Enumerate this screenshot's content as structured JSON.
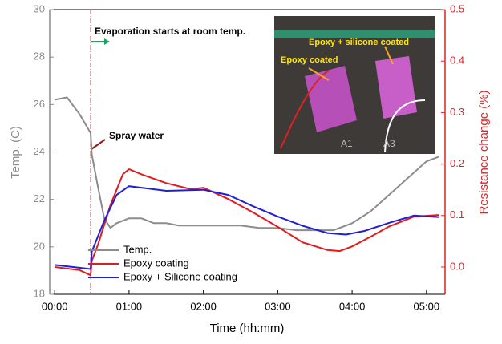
{
  "chart_data": {
    "type": "line",
    "xlabel": "Time (hh:mm)",
    "ylabel": "Temp. (C)",
    "y2label": "Resistance change (%)",
    "xlim": [
      -4,
      315
    ],
    "xticks": [
      {
        "value": 0,
        "label": "00:00"
      },
      {
        "value": 60,
        "label": "01:00"
      },
      {
        "value": 120,
        "label": "02:00"
      },
      {
        "value": 180,
        "label": "03:00"
      },
      {
        "value": 240,
        "label": "04:00"
      },
      {
        "value": 300,
        "label": "05:00"
      }
    ],
    "ylim": [
      18,
      30
    ],
    "yticks": [
      18,
      20,
      22,
      24,
      26,
      28,
      30
    ],
    "y2lim": [
      -0.053,
      0.5
    ],
    "y2ticks": [
      {
        "value": 0,
        "label": "0.0"
      },
      0.1,
      0.2,
      0.3,
      0.4,
      0.5
    ],
    "left_axis_color": "#8c8c8c",
    "right_axis_color": "#d62728",
    "legend": "lower left",
    "series": [
      {
        "name": "Temp.",
        "color": "#8c8c8c",
        "axis": "y",
        "x": [
          0,
          10,
          20,
          29,
          30,
          35,
          40,
          45,
          50,
          60,
          70,
          80,
          90,
          100,
          120,
          150,
          165,
          180,
          195,
          210,
          225,
          240,
          255,
          270,
          285,
          300,
          310
        ],
        "values": [
          26.2,
          26.3,
          25.6,
          24.8,
          23.9,
          22.5,
          21.2,
          20.8,
          21.0,
          21.2,
          21.2,
          21.0,
          21.0,
          20.9,
          20.9,
          20.9,
          20.8,
          20.8,
          20.7,
          20.7,
          20.7,
          21.0,
          21.5,
          22.2,
          22.9,
          23.6,
          23.8
        ]
      },
      {
        "name": "Epoxy coating",
        "color": "#e41a1c",
        "axis": "y2",
        "x": [
          0,
          20,
          29,
          30,
          35,
          45,
          55,
          60,
          70,
          90,
          110,
          120,
          140,
          160,
          180,
          200,
          220,
          230,
          240,
          255,
          270,
          290,
          310
        ],
        "values": [
          0.0,
          -0.006,
          -0.016,
          0.012,
          0.044,
          0.12,
          0.18,
          0.19,
          0.18,
          0.163,
          0.151,
          0.154,
          0.132,
          0.106,
          0.078,
          0.048,
          0.033,
          0.031,
          0.04,
          0.059,
          0.079,
          0.098,
          0.101
        ]
      },
      {
        "name": "Epoxy + Silicone coating",
        "color": "#1f1fd6",
        "axis": "y2",
        "x": [
          0,
          29,
          30,
          40,
          50,
          60,
          70,
          90,
          120,
          140,
          160,
          180,
          200,
          220,
          235,
          250,
          270,
          290,
          310
        ],
        "values": [
          0.004,
          -0.004,
          0.03,
          0.09,
          0.14,
          0.157,
          0.154,
          0.148,
          0.15,
          0.14,
          0.118,
          0.098,
          0.08,
          0.066,
          0.063,
          0.07,
          0.086,
          0.1,
          0.097
        ]
      }
    ],
    "event_x": 29,
    "annotations": {
      "evaporation": "Evaporation starts at room temp.",
      "spray": "Spray water"
    },
    "inset": {
      "label_both": "Epoxy + silicone coated",
      "label_epoxy": "Epoxy coated",
      "sample_a": "A1",
      "sample_b": "A3"
    }
  }
}
